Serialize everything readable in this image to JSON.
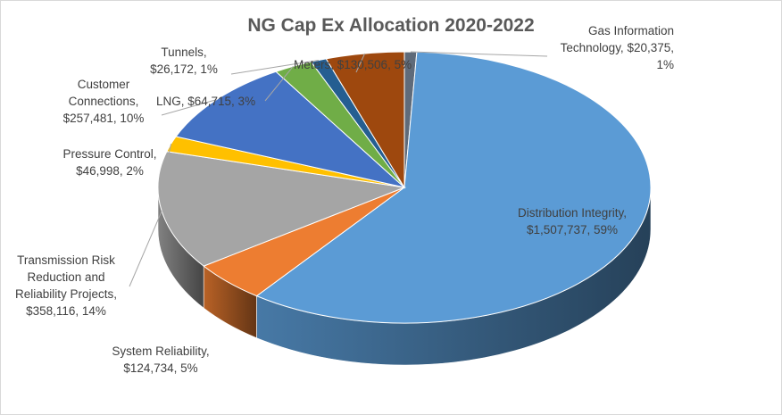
{
  "chart_data": {
    "type": "pie",
    "title": "NG Cap Ex Allocation 2020-2022",
    "slices": [
      {
        "key": "gas_it",
        "line1": "Gas Information",
        "line2": "Technology, $20,375,",
        "line3": "1%",
        "value": 20375,
        "pct": "1%",
        "color": "#5f6b7a"
      },
      {
        "key": "distribution",
        "line1": "Distribution Integrity,",
        "line2": "$1,507,737, 59%",
        "value": 1507737,
        "pct": "59%",
        "color": "#5b9bd5"
      },
      {
        "key": "system_reliability",
        "line1": "System Reliability,",
        "line2": "$124,734, 5%",
        "value": 124734,
        "pct": "5%",
        "color": "#ed7d31"
      },
      {
        "key": "transmission",
        "line1": "Transmission Risk",
        "line2": "Reduction and",
        "line3": "Reliability Projects,",
        "line4": "$358,116, 14%",
        "value": 358116,
        "pct": "14%",
        "color": "#a5a5a5"
      },
      {
        "key": "pressure",
        "line1": "Pressure Control,",
        "line2": "$46,998, 2%",
        "value": 46998,
        "pct": "2%",
        "color": "#ffc000"
      },
      {
        "key": "customer",
        "line1": "Customer",
        "line2": "Connections,",
        "line3": "$257,481, 10%",
        "value": 257481,
        "pct": "10%",
        "color": "#4472c4"
      },
      {
        "key": "lng",
        "line1": "LNG, $64,715, 3%",
        "value": 64715,
        "pct": "3%",
        "color": "#70ad47"
      },
      {
        "key": "tunnels",
        "line1": "Tunnels,",
        "line2": "$26,172, 1%",
        "value": 26172,
        "pct": "1%",
        "color": "#255e91"
      },
      {
        "key": "meters",
        "line1": "Meters, $130,506, 5%",
        "value": 130506,
        "pct": "5%",
        "color": "#9e480e"
      }
    ]
  }
}
